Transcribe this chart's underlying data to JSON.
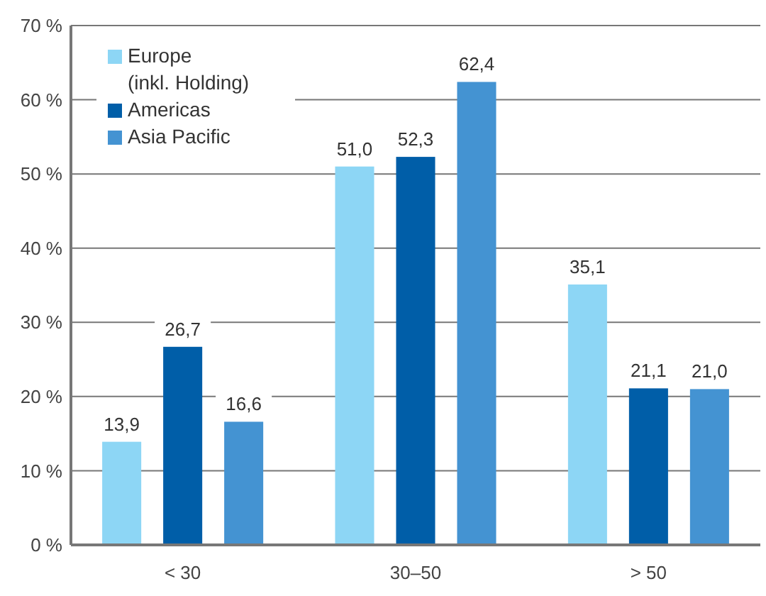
{
  "chart_data": {
    "type": "bar",
    "categories": [
      "< 30",
      "30–50",
      "> 50"
    ],
    "series": [
      {
        "name": "Europe\n(inkl. Holding)",
        "color": "#8dd6f5",
        "values": [
          13.9,
          51.0,
          35.1
        ],
        "value_labels": [
          "13,9",
          "51,0",
          "35,1"
        ]
      },
      {
        "name": "Americas",
        "color": "#005ea8",
        "values": [
          26.7,
          52.3,
          21.1
        ],
        "value_labels": [
          "26,7",
          "52,3",
          "21,1"
        ]
      },
      {
        "name": "Asia Pacific",
        "color": "#4493d2",
        "values": [
          16.6,
          62.4,
          21.0
        ],
        "value_labels": [
          "16,6",
          "62,4",
          "21,0"
        ]
      }
    ],
    "ylim": [
      0,
      70
    ],
    "yticks": [
      {
        "value": 0,
        "label": "0 %"
      },
      {
        "value": 10,
        "label": "10 %"
      },
      {
        "value": 20,
        "label": "20 %"
      },
      {
        "value": 30,
        "label": "30 %"
      },
      {
        "value": 40,
        "label": "40 %"
      },
      {
        "value": 50,
        "label": "50 %"
      },
      {
        "value": 60,
        "label": "60 %"
      },
      {
        "value": 70,
        "label": "70 %"
      }
    ],
    "grid": "y",
    "legend": "top left"
  }
}
